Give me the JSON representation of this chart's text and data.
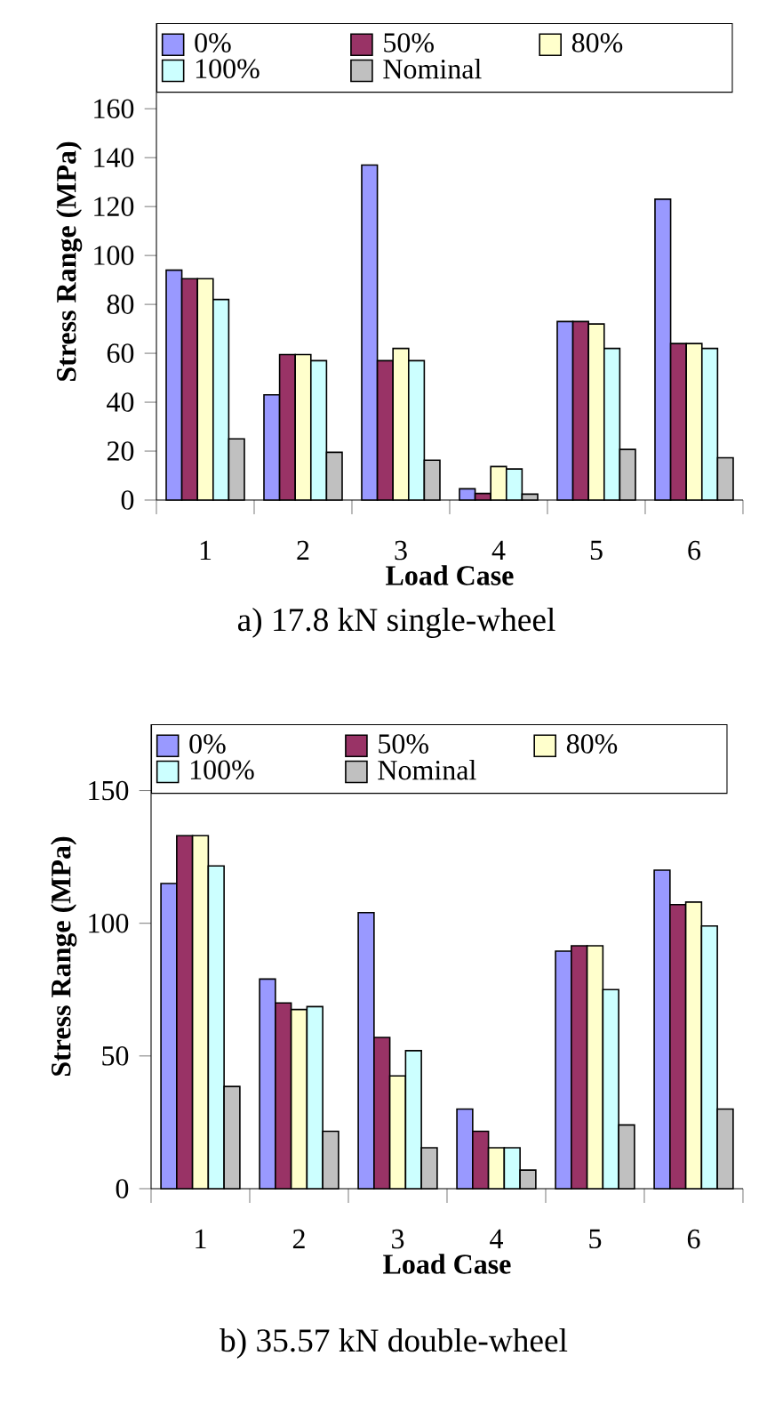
{
  "chart_data": [
    {
      "type": "bar",
      "title": "a) 17.8 kN single-wheel",
      "xlabel": "Load Case",
      "ylabel": "Stress Range (MPa)",
      "categories": [
        "1",
        "2",
        "3",
        "4",
        "5",
        "6"
      ],
      "series": [
        {
          "name": "0%",
          "color": "#9999ff",
          "values": [
            94,
            43,
            137,
            4.6,
            73,
            123
          ]
        },
        {
          "name": "50%",
          "color": "#993366",
          "values": [
            90.5,
            59.5,
            57,
            2.7,
            73,
            64
          ]
        },
        {
          "name": "80%",
          "color": "#ffffcc",
          "values": [
            90.5,
            59.5,
            62,
            13.7,
            72,
            64
          ]
        },
        {
          "name": "100%",
          "color": "#ccffff",
          "values": [
            82,
            57,
            57,
            12.7,
            62,
            62
          ]
        },
        {
          "name": "Nominal",
          "color": "#c0c0c0",
          "values": [
            25,
            19.5,
            16.3,
            2.4,
            20.7,
            17.3
          ]
        }
      ],
      "ylim": [
        0,
        195
      ],
      "yticks": [
        0,
        20,
        40,
        60,
        80,
        100,
        120,
        140,
        160
      ],
      "grid": false,
      "legend": "top"
    },
    {
      "type": "bar",
      "title": "b) 35.57 kN double-wheel",
      "xlabel": "Load Case",
      "ylabel": "Stress Range (MPa)",
      "categories": [
        "1",
        "2",
        "3",
        "4",
        "5",
        "6"
      ],
      "series": [
        {
          "name": "0%",
          "color": "#9999ff",
          "values": [
            115,
            79,
            104,
            30,
            89.5,
            120
          ]
        },
        {
          "name": "50%",
          "color": "#993366",
          "values": [
            133,
            70,
            57,
            21.6,
            91.5,
            107
          ]
        },
        {
          "name": "80%",
          "color": "#ffffcc",
          "values": [
            133,
            67.5,
            42.5,
            15.4,
            91.5,
            108
          ]
        },
        {
          "name": "100%",
          "color": "#ccffff",
          "values": [
            121.6,
            68.6,
            52,
            15.4,
            75,
            99
          ]
        },
        {
          "name": "Nominal",
          "color": "#c0c0c0",
          "values": [
            38.5,
            21.6,
            15.4,
            7,
            24,
            30
          ]
        }
      ],
      "ylim": [
        0,
        175
      ],
      "yticks": [
        0,
        50,
        100,
        150
      ],
      "grid": false,
      "legend": "top"
    }
  ]
}
